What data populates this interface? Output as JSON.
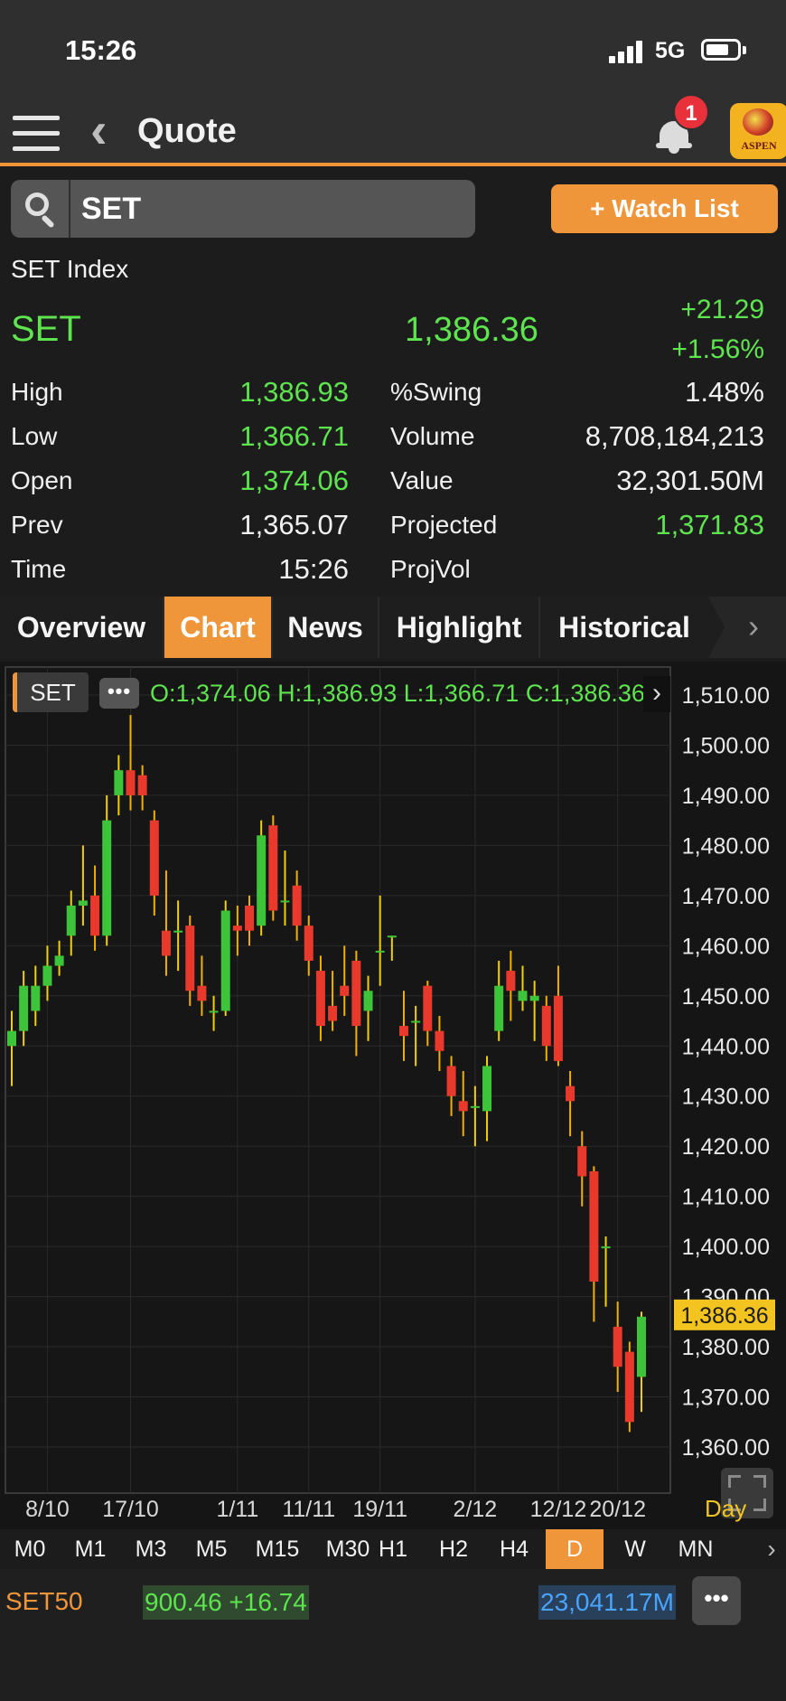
{
  "status": {
    "time": "15:26",
    "network": "5G"
  },
  "nav": {
    "title": "Quote",
    "badge_count": "1",
    "logo_text": "ASPEN"
  },
  "search": {
    "value": "SET",
    "watchlist_label": "+ Watch List"
  },
  "quote": {
    "index_name": "SET Index",
    "symbol": "SET",
    "last": "1,386.36",
    "change": "+21.29",
    "change_pct": "+1.56%",
    "stats_left": [
      {
        "label": "High",
        "value": "1,386.93",
        "color": "green"
      },
      {
        "label": "Low",
        "value": "1,366.71",
        "color": "green"
      },
      {
        "label": "Open",
        "value": "1,374.06",
        "color": "green"
      },
      {
        "label": "Prev",
        "value": "1,365.07",
        "color": "white"
      },
      {
        "label": "Time",
        "value": "15:26",
        "color": "white"
      }
    ],
    "stats_right": [
      {
        "label": "%Swing",
        "value": "1.48%",
        "color": "white"
      },
      {
        "label": "Volume",
        "value": "8,708,184,213",
        "color": "white"
      },
      {
        "label": "Value",
        "value": "32,301.50M",
        "color": "white"
      },
      {
        "label": "Projected",
        "value": "1,371.83",
        "color": "green"
      },
      {
        "label": "ProjVol",
        "value": "",
        "color": "white"
      }
    ]
  },
  "tabs": [
    "Overview",
    "Chart",
    "News",
    "Highlight",
    "Historical"
  ],
  "active_tab": "Chart",
  "chart_legend": {
    "symbol": "SET",
    "more": "•••",
    "ohlc": "O:1,374.06  H:1,386.93  L:1,366.71  C:1,386.36",
    "interval": "Day"
  },
  "timeframes": [
    "M0",
    "M1",
    "M3",
    "M5",
    "M15",
    "M30",
    "H1",
    "H2",
    "H4",
    "D",
    "W",
    "MN"
  ],
  "active_timeframe": "D",
  "ticker": {
    "symbol": "SET50",
    "price": "900.46 +16.74",
    "value": "23,041.17M",
    "more": "•••"
  },
  "colors": {
    "accent": "#f0963a",
    "up": "#3ec43a",
    "down": "#e8392c",
    "price_tag": "#f3c420"
  },
  "chart_data": {
    "type": "candlestick",
    "y_ticks": [
      1510,
      1500,
      1490,
      1480,
      1470,
      1460,
      1450,
      1440,
      1430,
      1420,
      1410,
      1400,
      1390,
      1380,
      1370,
      1360
    ],
    "x_labels": [
      {
        "label": "8/10",
        "index": 3
      },
      {
        "label": "17/10",
        "index": 10
      },
      {
        "label": "1/11",
        "index": 19
      },
      {
        "label": "11/11",
        "index": 25
      },
      {
        "label": "19/11",
        "index": 31
      },
      {
        "label": "2/12",
        "index": 39
      },
      {
        "label": "12/12",
        "index": 46
      },
      {
        "label": "20/12",
        "index": 51
      }
    ],
    "last_price": 1386.36,
    "last_price_label": "1,386.36",
    "grid": true,
    "candles": [
      [
        1440,
        1443,
        1447,
        1432
      ],
      [
        1443,
        1452,
        1455,
        1440
      ],
      [
        1447,
        1452,
        1456,
        1444
      ],
      [
        1452,
        1456,
        1460,
        1449
      ],
      [
        1456,
        1458,
        1461,
        1454
      ],
      [
        1462,
        1468,
        1471,
        1458
      ],
      [
        1468,
        1469,
        1480,
        1464
      ],
      [
        1470,
        1462,
        1476,
        1459
      ],
      [
        1462,
        1485,
        1490,
        1460
      ],
      [
        1490,
        1495,
        1498,
        1486
      ],
      [
        1495,
        1490,
        1506,
        1487
      ],
      [
        1494,
        1490,
        1496,
        1487
      ],
      [
        1485,
        1470,
        1487,
        1466
      ],
      [
        1463,
        1458,
        1475,
        1454
      ],
      [
        1463,
        1463,
        1469,
        1455
      ],
      [
        1464,
        1451,
        1466,
        1448
      ],
      [
        1452,
        1449,
        1458,
        1446
      ],
      [
        1447,
        1447,
        1450,
        1443
      ],
      [
        1447,
        1467,
        1469,
        1446
      ],
      [
        1464,
        1463,
        1468,
        1458
      ],
      [
        1468,
        1463,
        1470,
        1460
      ],
      [
        1464,
        1482,
        1485,
        1462
      ],
      [
        1484,
        1467,
        1486,
        1465
      ],
      [
        1469,
        1469,
        1479,
        1464
      ],
      [
        1472,
        1464,
        1475,
        1461
      ],
      [
        1464,
        1457,
        1466,
        1454
      ],
      [
        1455,
        1444,
        1458,
        1441
      ],
      [
        1448,
        1445,
        1455,
        1443
      ],
      [
        1452,
        1450,
        1460,
        1446
      ],
      [
        1457,
        1444,
        1459,
        1438
      ],
      [
        1447,
        1451,
        1454,
        1441
      ],
      [
        1459,
        1459,
        1470,
        1452
      ],
      [
        1462,
        1462,
        1462,
        1457
      ],
      [
        1444,
        1442,
        1451,
        1437
      ],
      [
        1445,
        1445,
        1448,
        1436
      ],
      [
        1452,
        1443,
        1453,
        1440
      ],
      [
        1443,
        1439,
        1446,
        1435
      ],
      [
        1436,
        1430,
        1438,
        1426
      ],
      [
        1429,
        1427,
        1435,
        1422
      ],
      [
        1428,
        1428,
        1432,
        1420
      ],
      [
        1427,
        1436,
        1438,
        1421
      ],
      [
        1443,
        1452,
        1457,
        1441
      ],
      [
        1455,
        1451,
        1459,
        1445
      ],
      [
        1449,
        1451,
        1456,
        1447
      ],
      [
        1449,
        1450,
        1453,
        1441
      ],
      [
        1448,
        1440,
        1450,
        1437
      ],
      [
        1450,
        1437,
        1456,
        1436
      ],
      [
        1432,
        1429,
        1435,
        1422
      ],
      [
        1420,
        1414,
        1423,
        1408
      ],
      [
        1415,
        1393,
        1416,
        1385
      ],
      [
        1400,
        1400,
        1402,
        1388
      ],
      [
        1384,
        1376,
        1389,
        1371
      ],
      [
        1379,
        1365,
        1381,
        1363
      ],
      [
        1374,
        1386,
        1387,
        1367
      ]
    ]
  }
}
